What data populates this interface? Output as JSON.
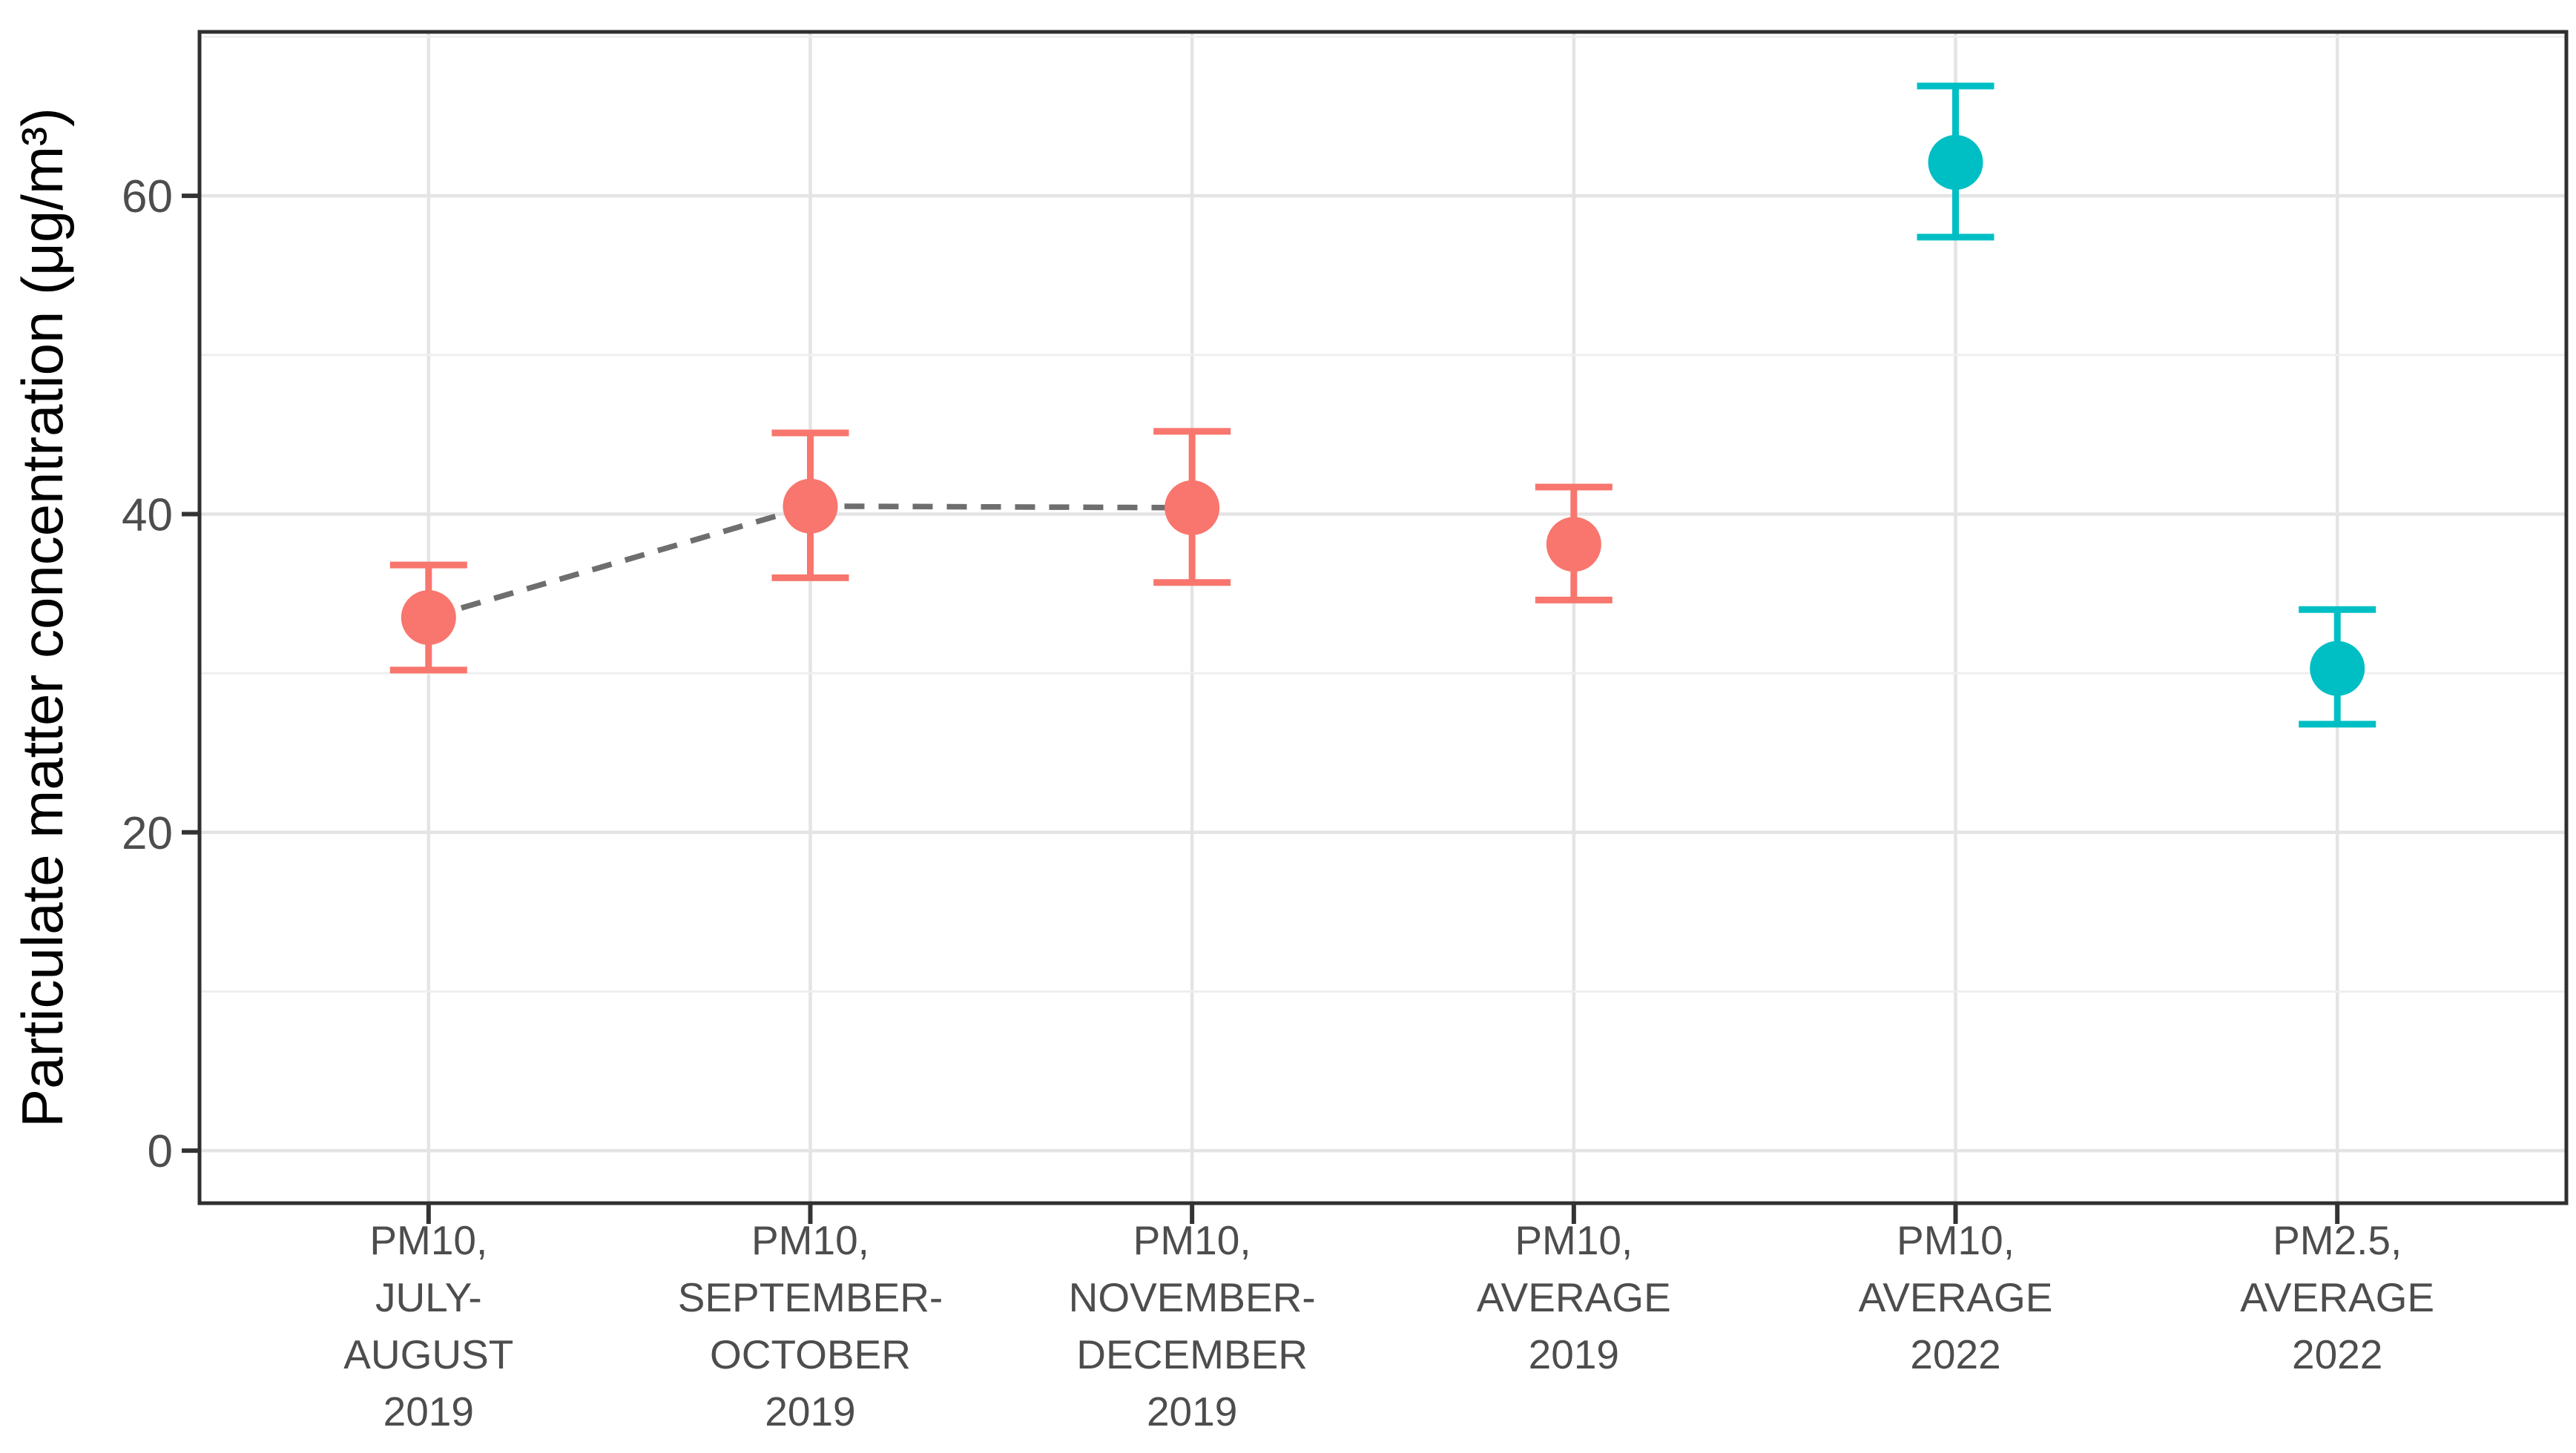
{
  "chart_data": {
    "type": "scatter",
    "title": "",
    "xlabel": "",
    "ylabel": "Particulate matter concentration (μg/m³)",
    "ylim": [
      -3.3,
      70.3
    ],
    "yticks": [
      0,
      20,
      40,
      60
    ],
    "yticks_minor": [
      10,
      30,
      50,
      70
    ],
    "grid": "major-and-minor, light gray on white, vertical gridline at each category",
    "legend_position": "none",
    "categories": [
      "PM10,\nJULY-\nAUGUST\n2019",
      "PM10,\nSEPTEMBER-\nOCTOBER\n2019",
      "PM10,\nNOVEMBER-\nDECEMBER\n2019",
      "PM10,\nAVERAGE\n2019",
      "PM10,\nAVERAGE\n2022",
      "PM2.5,\nAVERAGE\n2022"
    ],
    "series": [
      {
        "name": "PM10, JULY-AUGUST 2019",
        "mean": 33.5,
        "lower": 30.2,
        "upper": 36.8,
        "color": "#F8766D"
      },
      {
        "name": "PM10, SEPTEMBER-OCTOBER 2019",
        "mean": 40.5,
        "lower": 36.0,
        "upper": 45.1,
        "color": "#F8766D"
      },
      {
        "name": "PM10, NOVEMBER-DECEMBER 2019",
        "mean": 40.4,
        "lower": 35.7,
        "upper": 45.2,
        "color": "#F8766D"
      },
      {
        "name": "PM10, AVERAGE 2019",
        "mean": 38.1,
        "lower": 34.6,
        "upper": 41.7,
        "color": "#F8766D"
      },
      {
        "name": "PM10, AVERAGE 2022",
        "mean": 62.1,
        "lower": 57.4,
        "upper": 66.9,
        "color": "#00BFC4"
      },
      {
        "name": "PM2.5, AVERAGE 2022",
        "mean": 30.3,
        "lower": 26.8,
        "upper": 34.0,
        "color": "#00BFC4"
      }
    ],
    "connector_line": {
      "indices": [
        0,
        1,
        2
      ],
      "style": "dashed",
      "color": "#6E6E6E"
    }
  },
  "style": {
    "background": "#FFFFFF",
    "panel_border": "#2F2F2F",
    "grid_major": "#E4E4E4",
    "grid_minor": "#EFEFEF",
    "axis_tick": "#333333",
    "tick_label": "#4D4D4D",
    "axis_title": "#000000",
    "point_color_2019": "#F8766D",
    "point_color_2022": "#00BFC4"
  }
}
